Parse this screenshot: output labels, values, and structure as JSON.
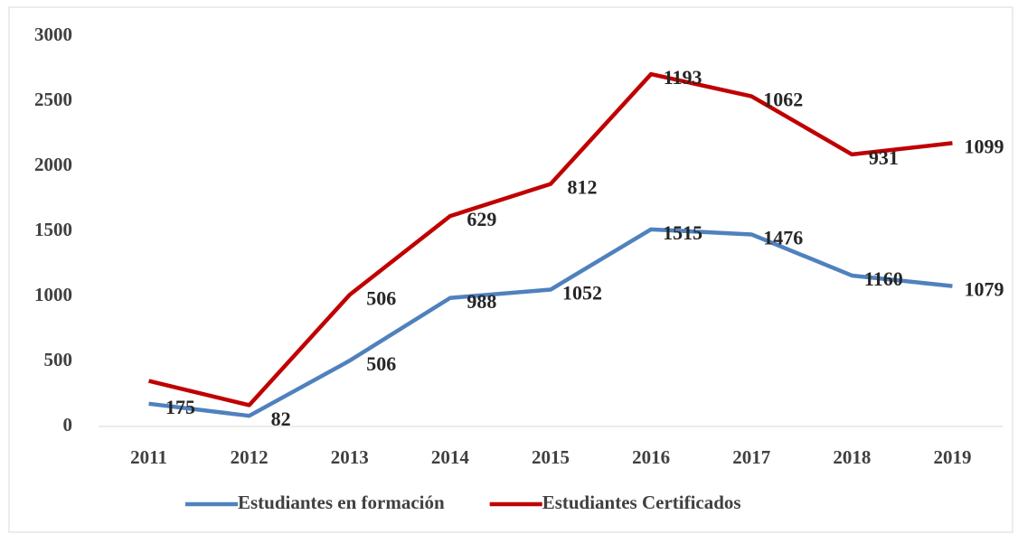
{
  "chart_data": {
    "type": "line",
    "stacked": true,
    "categories": [
      "2011",
      "2012",
      "2013",
      "2014",
      "2015",
      "2016",
      "2017",
      "2018",
      "2019"
    ],
    "series": [
      {
        "name": "Estudiantes en formación",
        "color": "#4f81bd",
        "values": [
          175,
          82,
          506,
          988,
          1052,
          1515,
          1476,
          1160,
          1079
        ]
      },
      {
        "name": "Estudiantes Certificados",
        "color": "#c00000",
        "values": [
          175,
          82,
          506,
          629,
          812,
          1193,
          1062,
          931,
          1099
        ],
        "value_labels": [
          null,
          null,
          "506",
          "629",
          "812",
          "1193",
          "1062",
          "931",
          "1099"
        ]
      }
    ],
    "ylim": [
      0,
      3000
    ],
    "yticks": [
      0,
      500,
      1000,
      1500,
      2000,
      2500,
      3000
    ],
    "legend": "bottom"
  }
}
